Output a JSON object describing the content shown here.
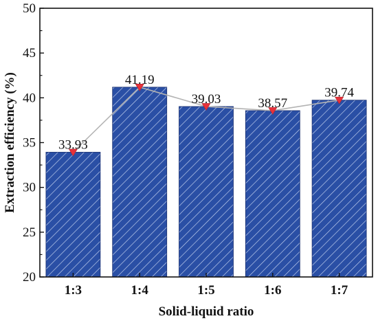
{
  "chart_data": {
    "type": "bar",
    "categories": [
      "1:3",
      "1:4",
      "1:5",
      "1:6",
      "1:7"
    ],
    "values": [
      33.93,
      41.19,
      39.03,
      38.57,
      39.74
    ],
    "data_labels": [
      "33.93",
      "41.19",
      "39.03",
      "38.57",
      "39.74"
    ],
    "xlabel": "Solid-liquid ratio",
    "ylabel": "Extraction efficiency (%)",
    "ylim": [
      20,
      50
    ],
    "yticks": [
      "20",
      "25",
      "30",
      "35",
      "40",
      "45",
      "50"
    ],
    "grid": false,
    "overlay": "line with inverted-triangle markers connecting bar tops",
    "colors": {
      "bar_fill": "#2a4fa5",
      "bar_hatch": "#c8d4f0",
      "line": "#b3b3b3",
      "marker": "#e8313a"
    }
  }
}
